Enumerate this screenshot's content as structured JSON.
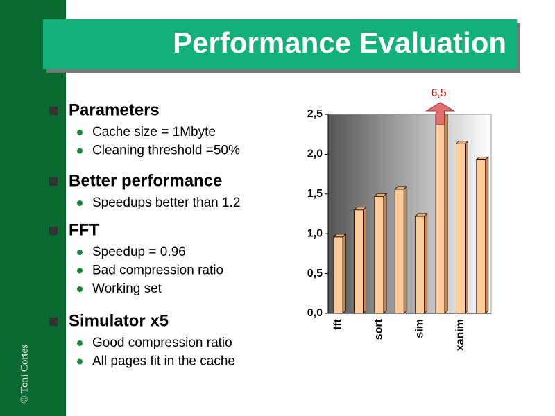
{
  "title": "Performance Evaluation",
  "copyright": "© Toni Cortes",
  "bullets": [
    {
      "text": "Parameters",
      "items": [
        "Cache size = 1Mbyte",
        "Cleaning threshold =50%"
      ]
    },
    {
      "text": "Better performance",
      "items": [
        "Speedups better than 1.2"
      ]
    },
    {
      "text": "FFT",
      "items": [
        "Speedup = 0.96",
        "Bad compression ratio",
        "Working set"
      ]
    },
    {
      "text": "Simulator x5",
      "items": [
        "Good compression ratio",
        "All pages fit in the cache"
      ]
    }
  ],
  "chart_data": {
    "type": "bar",
    "categories": [
      "fft",
      null,
      "sort",
      null,
      "sim",
      null,
      "xanim",
      null
    ],
    "values": [
      0.96,
      1.3,
      1.47,
      1.56,
      1.22,
      6.5,
      2.13,
      1.93
    ],
    "value_labels": [
      null,
      null,
      null,
      null,
      null,
      "6,5",
      null,
      null
    ],
    "color": "#ffcc99",
    "ylim": [
      0,
      2.5
    ],
    "yticks": [
      {
        "value": 0,
        "label": "0,0"
      },
      {
        "value": 0.5,
        "label": "0,5"
      },
      {
        "value": 1,
        "label": "1,0"
      },
      {
        "value": 1.5,
        "label": "1,5"
      },
      {
        "value": 2,
        "label": "2,0"
      },
      {
        "value": 2.5,
        "label": "2,5"
      }
    ]
  }
}
